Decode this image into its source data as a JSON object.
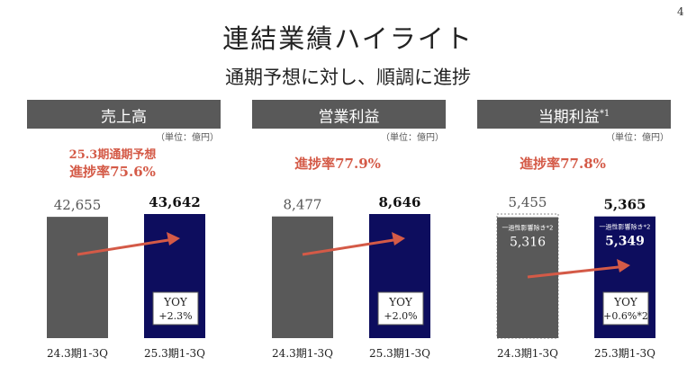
{
  "page_number": "4",
  "title": "連結業績ハイライト",
  "subtitle": "通期予想に対し、順調に進捗",
  "colors": {
    "prior_bar": "#595959",
    "current_bar": "#0d0d5e",
    "accent": "#d45a47",
    "header_bg": "#595959"
  },
  "panels": [
    {
      "header": "売上高",
      "header_note": "",
      "unit": "（単位：億円）",
      "progress_line1": "25.3期通期予想",
      "progress_line2": "進捗率75.6%"
    },
    {
      "header": "営業利益",
      "header_note": "",
      "unit": "（単位：億円）",
      "progress_line1": "",
      "progress_line2": "進捗率77.9%"
    },
    {
      "header": "当期利益",
      "header_note": "*1",
      "unit": "（単位：億円）",
      "progress_line1": "",
      "progress_line2": "進捗率77.8%"
    }
  ],
  "chart_data": [
    {
      "type": "bar",
      "title": "売上高",
      "categories": [
        "24.3期1-3Q",
        "25.3期1-3Q"
      ],
      "values": [
        42655,
        43642
      ],
      "value_labels": [
        "42,655",
        "43,642"
      ],
      "yoy_label": "YOY",
      "yoy_value": "+2.3%"
    },
    {
      "type": "bar",
      "title": "営業利益",
      "categories": [
        "24.3期1-3Q",
        "25.3期1-3Q"
      ],
      "values": [
        8477,
        8646
      ],
      "value_labels": [
        "8,477",
        "8,646"
      ],
      "yoy_label": "YOY",
      "yoy_value": "+2.0%"
    },
    {
      "type": "bar",
      "title": "当期利益",
      "categories": [
        "24.3期1-3Q",
        "25.3期1-3Q"
      ],
      "values": [
        5455,
        5365
      ],
      "value_labels": [
        "5,455",
        "5,365"
      ],
      "adjusted_label": "一過性影響除き",
      "adjusted_note": "*2",
      "adjusted_values": [
        5316,
        5349
      ],
      "adjusted_value_labels": [
        "5,316",
        "5,349"
      ],
      "yoy_label": "YOY",
      "yoy_value": "+0.6%",
      "yoy_note": "*2"
    }
  ]
}
